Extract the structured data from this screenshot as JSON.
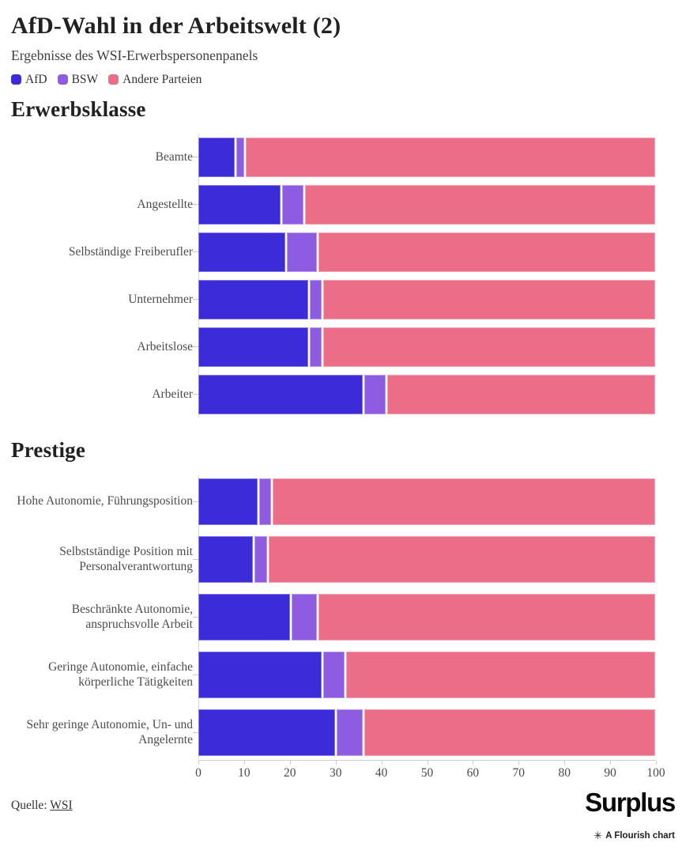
{
  "header": {
    "title": "AfD-Wahl in der Arbeitswelt (2)",
    "subtitle": "Ergebnisse des WSI-Erwerbspersonenpanels"
  },
  "colors": {
    "afd": "#3c2bd9",
    "bsw": "#8e5ce0",
    "andere": "#ec6d87",
    "axis": "#cfcfcf"
  },
  "legend": [
    {
      "label": "AfD",
      "color": "#3c2bd9"
    },
    {
      "label": "BSW",
      "color": "#8e5ce0"
    },
    {
      "label": "Andere Parteien",
      "color": "#ec6d87"
    }
  ],
  "chart_data": [
    {
      "type": "bar",
      "stacked": true,
      "orientation": "horizontal",
      "title": "Erwerbsklasse",
      "xlim": [
        0,
        100
      ],
      "grid": false,
      "categories": [
        "Beamte",
        "Angestellte",
        "Selbständige Freiberufler",
        "Unternehmer",
        "Arbeitslose",
        "Arbeiter"
      ],
      "series": [
        {
          "name": "AfD",
          "color": "#3c2bd9",
          "values": [
            8,
            18,
            19,
            24,
            24,
            36
          ]
        },
        {
          "name": "BSW",
          "color": "#8e5ce0",
          "values": [
            2,
            5,
            7,
            3,
            3,
            5
          ]
        },
        {
          "name": "Andere Parteien",
          "color": "#ec6d87",
          "values": [
            90,
            77,
            74,
            73,
            73,
            59
          ]
        }
      ]
    },
    {
      "type": "bar",
      "stacked": true,
      "orientation": "horizontal",
      "title": "Prestige",
      "xlim": [
        0,
        100
      ],
      "grid": false,
      "x_ticks": [
        0,
        10,
        20,
        30,
        40,
        50,
        60,
        70,
        80,
        90,
        100
      ],
      "categories": [
        "Hohe Autonomie, Führungsposition",
        "Selbstständige Position mit Personalverantwortung",
        "Beschränkte Autonomie, anspruchsvolle Arbeit",
        "Geringe Autonomie, einfache körperliche Tätigkeiten",
        "Sehr geringe Autonomie, Un- und Angelernte"
      ],
      "series": [
        {
          "name": "AfD",
          "color": "#3c2bd9",
          "values": [
            13,
            12,
            20,
            27,
            30
          ]
        },
        {
          "name": "BSW",
          "color": "#8e5ce0",
          "values": [
            3,
            3,
            6,
            5,
            6
          ]
        },
        {
          "name": "Andere Parteien",
          "color": "#ec6d87",
          "values": [
            84,
            85,
            74,
            68,
            64
          ]
        }
      ]
    }
  ],
  "footer": {
    "source_prefix": "Quelle: ",
    "source_link": "WSI",
    "brand": "Surplus",
    "flourish_icon": "✳",
    "flourish_credit": "A Flourish chart"
  }
}
